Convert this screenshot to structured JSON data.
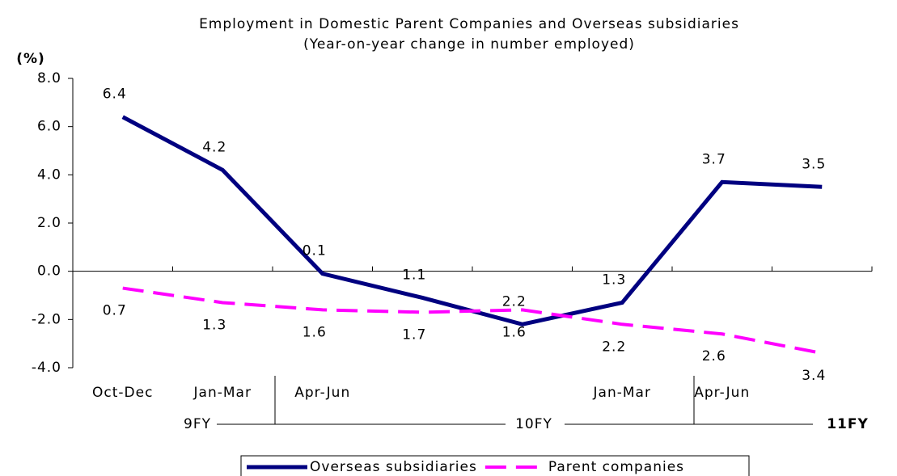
{
  "chart_data": {
    "type": "line",
    "title": "Employment in Domestic Parent Companies and Overseas subsidiaries",
    "subtitle": "(Year-on-year change in number employed)",
    "y_label": "(%)",
    "categories": [
      "Oct-Dec",
      "Jan-Mar",
      "Apr-Jun",
      null,
      null,
      "Jan-Mar",
      "Apr-Jun",
      null
    ],
    "fiscal_years": [
      "9FY",
      "10FY",
      "11FY"
    ],
    "series": [
      {
        "name": "Overseas subsidiaries",
        "color": "#000080",
        "dash": false,
        "values": [
          6.4,
          4.2,
          -0.1,
          -1.1,
          -2.2,
          -1.3,
          3.7,
          3.5
        ],
        "value_labels": [
          "6.4",
          "4.2",
          "0.1",
          "1.1",
          "2.2",
          "1.3",
          "3.7",
          "3.5"
        ]
      },
      {
        "name": "Parent companies",
        "color": "#ff00ff",
        "dash": true,
        "values": [
          -0.7,
          -1.3,
          -1.6,
          -1.7,
          -1.6,
          -2.2,
          -2.6,
          -3.4
        ],
        "value_labels": [
          "0.7",
          "1.3",
          "1.6",
          "1.7",
          "1.6",
          "2.2",
          "2.6",
          "3.4"
        ]
      }
    ],
    "ylim": [
      -4,
      8
    ],
    "yticks": [
      {
        "value": -4,
        "label": "-4.0"
      },
      {
        "value": -2,
        "label": "-2.0"
      },
      {
        "value": 0,
        "label": "0.0"
      },
      {
        "value": 2,
        "label": "2.0"
      },
      {
        "value": 4,
        "label": "4.0"
      },
      {
        "value": 6,
        "label": "6.0"
      },
      {
        "value": 8,
        "label": "8.0"
      }
    ],
    "legend": "bottom"
  }
}
